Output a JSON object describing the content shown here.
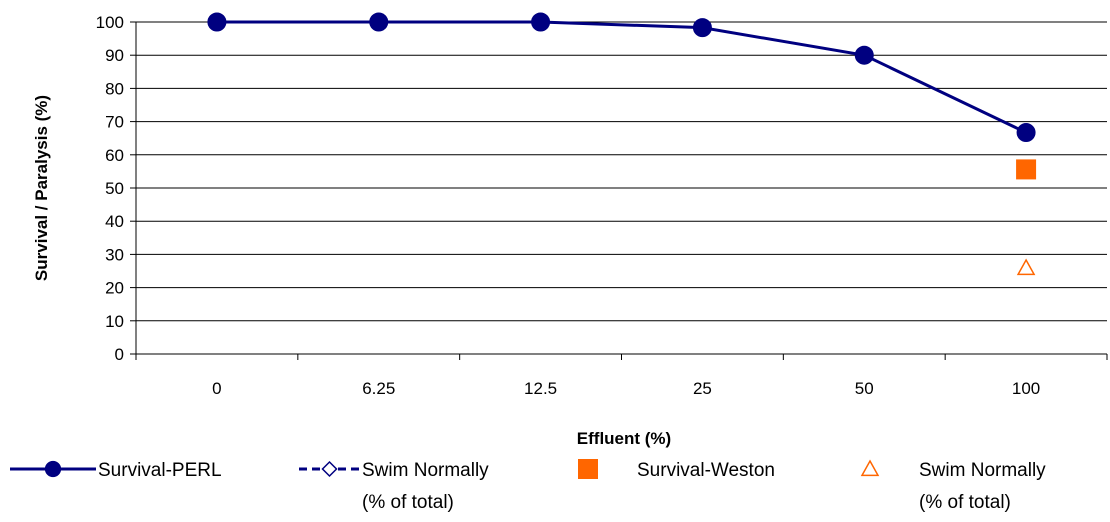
{
  "chart_data": {
    "type": "line",
    "title": "",
    "xlabel": "Effluent (%)",
    "ylabel": "Survival / Paralysis (%)",
    "ylim": [
      0,
      100
    ],
    "yticks": [
      "0",
      "10",
      "20",
      "30",
      "40",
      "50",
      "60",
      "70",
      "80",
      "90",
      "100"
    ],
    "categories": [
      "0",
      "6.25",
      "12.5",
      "25",
      "50",
      "100"
    ],
    "grid": true,
    "legend_position": "bottom",
    "series": [
      {
        "name": "Survival-PERL",
        "values": [
          100,
          100,
          100,
          98.3,
          90,
          66.7
        ],
        "color": "#000080",
        "marker": "filled-circle",
        "line": "solid"
      },
      {
        "name": "Swim Normally (% of total)",
        "values": [
          null,
          null,
          null,
          null,
          null,
          null
        ],
        "color": "#000080",
        "marker": "open-diamond",
        "line": "dashed"
      },
      {
        "name": "Survival-Weston",
        "values": [
          null,
          null,
          null,
          null,
          null,
          55.6
        ],
        "color": "#ff6600",
        "marker": "filled-square",
        "line": "none"
      },
      {
        "name": "Swim Normally (% of total)",
        "values": [
          null,
          null,
          null,
          null,
          null,
          25.9
        ],
        "color": "#ff6600",
        "marker": "open-triangle",
        "line": "none"
      }
    ]
  }
}
